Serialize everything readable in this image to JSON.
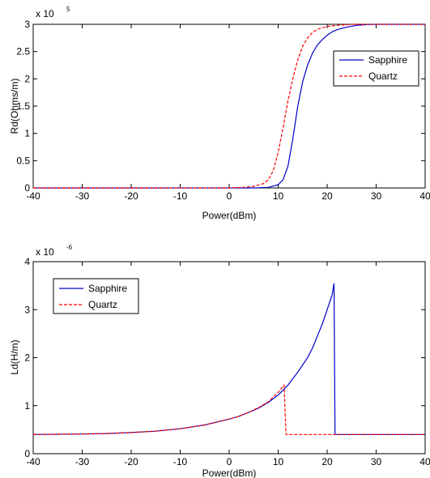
{
  "chart_data": [
    {
      "type": "line",
      "title": "",
      "xlabel": "Power(dBm)",
      "ylabel": "Rd(Ohms/m)",
      "exponent_label": "x 10",
      "exponent_power": "5",
      "xlim": [
        -40,
        40
      ],
      "ylim": [
        0,
        3
      ],
      "xticks": [
        "-40",
        "-30",
        "-20",
        "-10",
        "0",
        "10",
        "20",
        "30",
        "40"
      ],
      "yticks": [
        "0",
        "0.5",
        "1",
        "1.5",
        "2",
        "2.5",
        "3"
      ],
      "legend_position": "right",
      "series": [
        {
          "name": "Sapphire",
          "color": "#0000cc",
          "style": "solid",
          "x": [
            -40,
            -20,
            0,
            5,
            8,
            10,
            11,
            12,
            13,
            14,
            15,
            16,
            17,
            18,
            19,
            20,
            21,
            22,
            24,
            26,
            28,
            30,
            35,
            40
          ],
          "y": [
            0,
            0,
            0,
            0,
            0.01,
            0.06,
            0.15,
            0.4,
            0.9,
            1.5,
            1.95,
            2.25,
            2.47,
            2.62,
            2.72,
            2.8,
            2.86,
            2.9,
            2.95,
            2.98,
            2.995,
            3.0,
            3.0,
            3.0
          ]
        },
        {
          "name": "Quartz",
          "color": "#ff0000",
          "style": "dashed",
          "x": [
            -40,
            -20,
            0,
            3,
            5,
            7,
            8,
            9,
            10,
            11,
            12,
            13,
            14,
            15,
            16,
            17,
            18,
            20,
            22,
            25,
            30,
            35,
            40
          ],
          "y": [
            0,
            0,
            0.001,
            0.01,
            0.03,
            0.08,
            0.15,
            0.32,
            0.65,
            1.1,
            1.6,
            2.0,
            2.35,
            2.6,
            2.75,
            2.85,
            2.91,
            2.96,
            2.98,
            3.0,
            3.0,
            3.0,
            3.0
          ]
        }
      ]
    },
    {
      "type": "line",
      "title": "",
      "xlabel": "Power(dBm)",
      "ylabel": "Ld(H/m)",
      "exponent_label": "x 10",
      "exponent_power": "-6",
      "xlim": [
        -40,
        40
      ],
      "ylim": [
        0,
        4
      ],
      "xticks": [
        "-40",
        "-30",
        "-20",
        "-10",
        "0",
        "10",
        "20",
        "30",
        "40"
      ],
      "yticks": [
        "0",
        "1",
        "2",
        "3",
        "4"
      ],
      "legend_position": "top-left",
      "series": [
        {
          "name": "Sapphire",
          "color": "#0000cc",
          "style": "solid",
          "x": [
            -40,
            -35,
            -30,
            -25,
            -20,
            -15,
            -10,
            -5,
            0,
            2,
            4,
            6,
            8,
            10,
            12,
            14,
            15,
            16,
            17,
            18,
            19,
            20,
            21,
            21.4,
            21.6,
            25,
            30,
            35,
            40
          ],
          "y": [
            0.4,
            0.405,
            0.41,
            0.42,
            0.44,
            0.47,
            0.52,
            0.6,
            0.72,
            0.78,
            0.86,
            0.95,
            1.07,
            1.22,
            1.43,
            1.7,
            1.85,
            2.0,
            2.2,
            2.45,
            2.7,
            3.0,
            3.3,
            3.55,
            0.4,
            0.4,
            0.4,
            0.4,
            0.4
          ]
        },
        {
          "name": "Quartz",
          "color": "#ff0000",
          "style": "dashed",
          "x": [
            -40,
            -35,
            -30,
            -25,
            -20,
            -15,
            -10,
            -5,
            0,
            2,
            4,
            6,
            8,
            10,
            11.2,
            11.6,
            15,
            20,
            25,
            30,
            35,
            40
          ],
          "y": [
            0.4,
            0.405,
            0.41,
            0.42,
            0.44,
            0.47,
            0.52,
            0.6,
            0.72,
            0.78,
            0.86,
            0.96,
            1.08,
            1.28,
            1.43,
            0.4,
            0.4,
            0.4,
            0.4,
            0.4,
            0.4,
            0.4
          ]
        }
      ]
    }
  ]
}
